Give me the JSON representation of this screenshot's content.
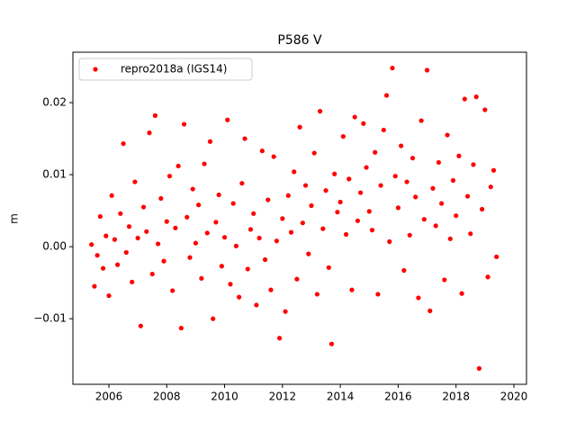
{
  "chart_data": {
    "type": "scatter",
    "title": "P586 V",
    "y_label": "m",
    "xlim": [
      2004.756,
      2020.436
    ],
    "xticks": [
      2006,
      2008,
      2010,
      2012,
      2014,
      2016,
      2018,
      2020
    ],
    "ylim": [
      -0.0191,
      0.027
    ],
    "yticks": [
      {
        "value": -0.01,
        "label": "−0.01"
      },
      {
        "value": 0,
        "label": "0.00"
      },
      0.01,
      0.02
    ],
    "legend": "upper left",
    "series": [
      {
        "name": "repro2018a (IGS14)",
        "color": "#ff0000",
        "x": [
          2005.4,
          2005.5,
          2005.6,
          2005.7,
          2005.8,
          2005.9,
          2006.0,
          2006.1,
          2006.2,
          2006.3,
          2006.4,
          2006.5,
          2006.6,
          2006.7,
          2006.8,
          2006.9,
          2007.0,
          2007.1,
          2007.2,
          2007.3,
          2007.4,
          2007.5,
          2007.6,
          2007.7,
          2007.8,
          2007.9,
          2008.0,
          2008.1,
          2008.2,
          2008.3,
          2008.4,
          2008.5,
          2008.6,
          2008.7,
          2008.8,
          2008.9,
          2009.0,
          2009.1,
          2009.2,
          2009.3,
          2009.4,
          2009.5,
          2009.6,
          2009.7,
          2009.8,
          2009.9,
          2010.0,
          2010.1,
          2010.2,
          2010.3,
          2010.4,
          2010.5,
          2010.6,
          2010.7,
          2010.8,
          2010.9,
          2011.0,
          2011.1,
          2011.2,
          2011.3,
          2011.4,
          2011.5,
          2011.6,
          2011.7,
          2011.8,
          2011.9,
          2012.0,
          2012.1,
          2012.2,
          2012.3,
          2012.4,
          2012.5,
          2012.6,
          2012.7,
          2012.8,
          2012.9,
          2013.0,
          2013.1,
          2013.2,
          2013.3,
          2013.4,
          2013.5,
          2013.6,
          2013.7,
          2013.8,
          2013.9,
          2014.0,
          2014.1,
          2014.2,
          2014.3,
          2014.4,
          2014.5,
          2014.6,
          2014.7,
          2014.8,
          2014.9,
          2015.0,
          2015.1,
          2015.2,
          2015.3,
          2015.4,
          2015.5,
          2015.6,
          2015.7,
          2015.8,
          2015.9,
          2016.0,
          2016.1,
          2016.2,
          2016.3,
          2016.4,
          2016.5,
          2016.6,
          2016.7,
          2016.8,
          2016.9,
          2017.0,
          2017.1,
          2017.2,
          2017.3,
          2017.4,
          2017.5,
          2017.6,
          2017.7,
          2017.8,
          2017.9,
          2018.0,
          2018.1,
          2018.2,
          2018.3,
          2018.4,
          2018.5,
          2018.6,
          2018.7,
          2018.8,
          2018.9,
          2019.0,
          2019.1,
          2019.2,
          2019.3,
          2019.4
        ],
        "values": [
          0.0003,
          -0.0055,
          -0.0012,
          0.0042,
          -0.003,
          0.0015,
          -0.0068,
          0.0071,
          0.001,
          -0.0025,
          0.0046,
          0.0143,
          -0.0008,
          0.0028,
          -0.0049,
          0.009,
          0.0012,
          -0.011,
          0.0055,
          0.0021,
          0.0158,
          -0.0038,
          0.0182,
          0.0004,
          0.0067,
          -0.002,
          0.0035,
          0.0098,
          -0.0061,
          0.0026,
          0.0112,
          -0.0113,
          0.017,
          0.0041,
          -0.0015,
          0.008,
          0.0005,
          0.0058,
          -0.0044,
          0.0115,
          0.0019,
          0.0146,
          -0.01,
          0.0034,
          0.0072,
          -0.0027,
          0.0013,
          0.0176,
          -0.0052,
          0.006,
          0.0001,
          -0.007,
          0.0088,
          0.015,
          -0.0031,
          0.0024,
          0.0046,
          -0.0081,
          0.0012,
          0.0133,
          -0.0018,
          0.0065,
          -0.006,
          0.0125,
          0.0008,
          -0.0127,
          0.0039,
          -0.009,
          0.0071,
          0.002,
          0.0104,
          -0.0045,
          0.0166,
          0.0033,
          0.0085,
          -0.001,
          0.0057,
          0.013,
          -0.0066,
          0.0188,
          0.0025,
          0.0078,
          -0.0029,
          -0.0135,
          0.0101,
          0.0048,
          0.0062,
          0.0153,
          0.0017,
          0.0094,
          -0.006,
          0.018,
          0.0036,
          0.0075,
          0.0171,
          0.011,
          0.0049,
          0.0023,
          0.0131,
          -0.0066,
          0.0085,
          0.0162,
          0.021,
          0.0007,
          0.0248,
          0.0098,
          0.0054,
          0.014,
          -0.0033,
          0.009,
          0.0016,
          0.0123,
          0.0069,
          -0.0071,
          0.0175,
          0.0038,
          0.0245,
          -0.0089,
          0.0081,
          0.0029,
          0.0117,
          0.006,
          -0.0046,
          0.0155,
          0.0011,
          0.0092,
          0.0043,
          0.0126,
          -0.0065,
          0.0205,
          0.007,
          0.0018,
          0.0114,
          0.0208,
          -0.0169,
          0.0052,
          0.019,
          -0.0042,
          0.0083,
          0.0106,
          -0.0014
        ]
      }
    ]
  }
}
